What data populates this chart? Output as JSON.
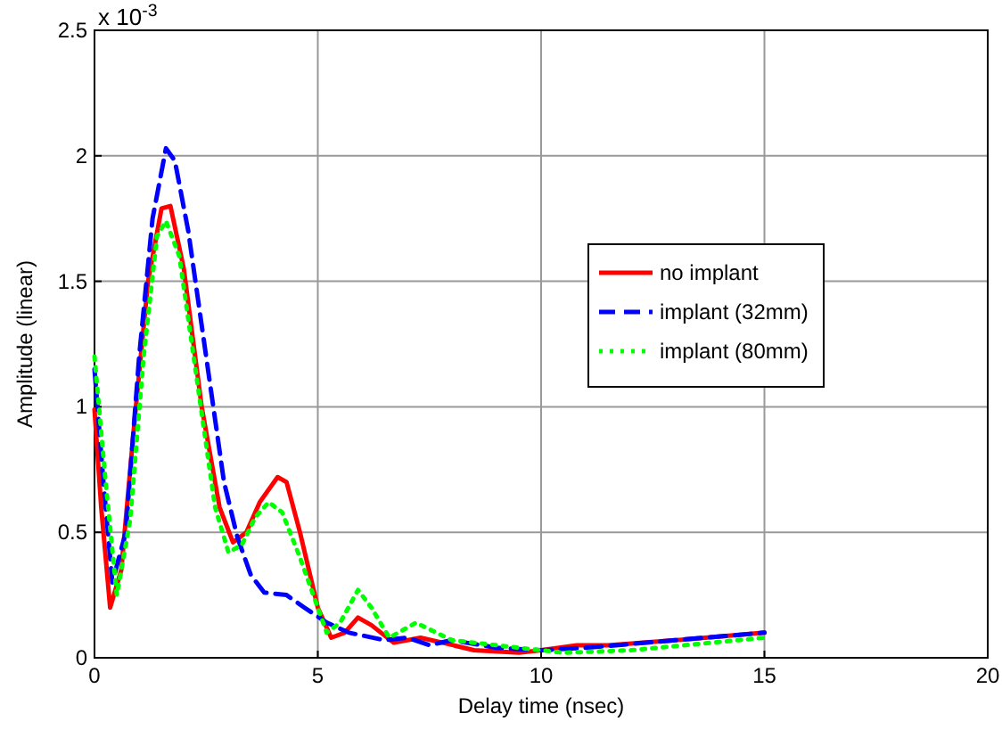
{
  "chart_data": {
    "type": "line",
    "xlabel": "Delay time (nsec)",
    "ylabel": "Amplitude (linear)",
    "annotations": [
      "x 10$^{-3}$"
    ],
    "xlim": [
      0,
      20
    ],
    "xticks": [
      0,
      5,
      10,
      15,
      20
    ],
    "ylim": [
      0,
      2.5
    ],
    "yticks": [
      0,
      0.5,
      1,
      1.5,
      2,
      2.5
    ],
    "grid": true,
    "legend": "right",
    "series": [
      {
        "name": "no implant",
        "color": "#ff0000",
        "line_style": "solid",
        "x": [
          0,
          0.15,
          0.35,
          0.6,
          0.9,
          1.2,
          1.5,
          1.7,
          2.0,
          2.4,
          2.8,
          3.1,
          3.4,
          3.7,
          4.1,
          4.3,
          4.6,
          5.0,
          5.3,
          5.6,
          5.9,
          6.2,
          6.7,
          7.3,
          7.8,
          8.5,
          9.5,
          10.0,
          10.8,
          11.5,
          13,
          15
        ],
        "values": [
          0.99,
          0.6,
          0.2,
          0.35,
          0.95,
          1.5,
          1.79,
          1.8,
          1.55,
          1.0,
          0.6,
          0.46,
          0.5,
          0.62,
          0.72,
          0.7,
          0.5,
          0.2,
          0.08,
          0.1,
          0.16,
          0.13,
          0.06,
          0.08,
          0.06,
          0.03,
          0.02,
          0.03,
          0.05,
          0.05,
          0.07,
          0.1
        ]
      },
      {
        "name": "implant (32mm)",
        "color": "#0000ff",
        "line_style": "dashed",
        "x": [
          0,
          0.2,
          0.4,
          0.7,
          1.0,
          1.3,
          1.6,
          1.8,
          2.1,
          2.5,
          2.9,
          3.2,
          3.5,
          3.8,
          4.3,
          4.7,
          5.2,
          5.7,
          6.5,
          7.0,
          7.5,
          8.0,
          9.0,
          10.0,
          11.0,
          13,
          15
        ],
        "values": [
          1.15,
          0.7,
          0.3,
          0.5,
          1.2,
          1.75,
          2.03,
          1.98,
          1.7,
          1.2,
          0.7,
          0.48,
          0.33,
          0.26,
          0.25,
          0.2,
          0.14,
          0.1,
          0.07,
          0.08,
          0.05,
          0.07,
          0.04,
          0.03,
          0.04,
          0.07,
          0.1
        ]
      },
      {
        "name": "implant (80mm)",
        "color": "#00ff00",
        "line_style": "dotted",
        "x": [
          0,
          0.25,
          0.5,
          0.8,
          1.1,
          1.4,
          1.6,
          1.9,
          2.3,
          2.7,
          3.0,
          3.3,
          3.6,
          3.9,
          4.2,
          4.6,
          5.2,
          5.5,
          5.9,
          6.2,
          6.6,
          7.2,
          8.0,
          9.5,
          10.5,
          12,
          15
        ],
        "values": [
          1.2,
          0.7,
          0.25,
          0.55,
          1.2,
          1.68,
          1.74,
          1.6,
          1.1,
          0.6,
          0.42,
          0.45,
          0.56,
          0.62,
          0.58,
          0.4,
          0.1,
          0.14,
          0.27,
          0.2,
          0.08,
          0.14,
          0.07,
          0.04,
          0.02,
          0.03,
          0.08
        ]
      }
    ]
  }
}
